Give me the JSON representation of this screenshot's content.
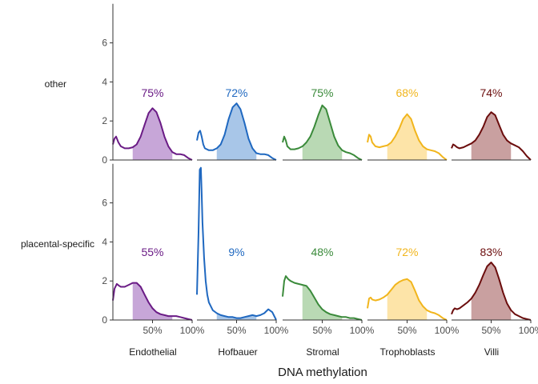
{
  "chart_data": {
    "type": "area",
    "xlabel": "DNA methylation",
    "ylabel": "",
    "ylim": [
      0,
      8
    ],
    "yticks": [
      0,
      2,
      4,
      6
    ],
    "xlim": [
      0,
      1
    ],
    "xticks": [
      0.5,
      1.0
    ],
    "xtick_labels": [
      "50%",
      "100%"
    ],
    "grid": false,
    "rows": [
      "other",
      "placental-specific"
    ],
    "columns": [
      "Endothelial",
      "Hofbauer",
      "Stromal",
      "Trophoblasts",
      "Villi"
    ],
    "colors": {
      "Endothelial": {
        "line": "#6a1b85",
        "fill": "#c7a6d8"
      },
      "Hofbauer": {
        "line": "#1f68c0",
        "fill": "#a8c6e8"
      },
      "Stromal": {
        "line": "#3a8a3a",
        "fill": "#b9d9b4"
      },
      "Trophoblasts": {
        "line": "#f1b51c",
        "fill": "#fde4a8"
      },
      "Villi": {
        "line": "#6b0d0d",
        "fill": "#c9a0a0"
      }
    },
    "panels": [
      {
        "row": "other",
        "column": "Endothelial",
        "percent_label": "75%",
        "shade": [
          0.25,
          0.75
        ],
        "x": [
          0,
          0.02,
          0.04,
          0.07,
          0.1,
          0.15,
          0.2,
          0.25,
          0.3,
          0.35,
          0.4,
          0.45,
          0.5,
          0.55,
          0.6,
          0.65,
          0.7,
          0.75,
          0.8,
          0.85,
          0.9,
          0.95,
          1.0
        ],
        "y": [
          0.8,
          1.1,
          1.2,
          0.9,
          0.7,
          0.6,
          0.6,
          0.65,
          0.8,
          1.2,
          1.8,
          2.4,
          2.65,
          2.45,
          1.9,
          1.2,
          0.7,
          0.4,
          0.3,
          0.3,
          0.25,
          0.1,
          0.0
        ]
      },
      {
        "row": "other",
        "column": "Hofbauer",
        "percent_label": "72%",
        "shade": [
          0.25,
          0.75
        ],
        "x": [
          0,
          0.02,
          0.04,
          0.06,
          0.08,
          0.1,
          0.15,
          0.2,
          0.25,
          0.3,
          0.35,
          0.4,
          0.45,
          0.5,
          0.55,
          0.6,
          0.65,
          0.7,
          0.75,
          0.8,
          0.85,
          0.9,
          0.95,
          1.0
        ],
        "y": [
          1.0,
          1.4,
          1.5,
          1.2,
          0.8,
          0.6,
          0.5,
          0.5,
          0.6,
          0.8,
          1.3,
          2.1,
          2.7,
          2.9,
          2.6,
          1.9,
          1.1,
          0.6,
          0.35,
          0.3,
          0.3,
          0.25,
          0.1,
          0.0
        ]
      },
      {
        "row": "other",
        "column": "Stromal",
        "percent_label": "75%",
        "shade": [
          0.25,
          0.75
        ],
        "x": [
          0,
          0.02,
          0.04,
          0.06,
          0.1,
          0.15,
          0.2,
          0.25,
          0.3,
          0.35,
          0.4,
          0.45,
          0.5,
          0.55,
          0.6,
          0.65,
          0.7,
          0.75,
          0.8,
          0.85,
          0.9,
          0.95,
          1.0
        ],
        "y": [
          0.9,
          1.2,
          1.0,
          0.7,
          0.55,
          0.55,
          0.6,
          0.7,
          0.9,
          1.2,
          1.7,
          2.3,
          2.8,
          2.6,
          1.9,
          1.2,
          0.75,
          0.5,
          0.4,
          0.35,
          0.25,
          0.1,
          0.0
        ]
      },
      {
        "row": "other",
        "column": "Trophoblasts",
        "percent_label": "68%",
        "shade": [
          0.25,
          0.75
        ],
        "x": [
          0,
          0.02,
          0.04,
          0.06,
          0.1,
          0.15,
          0.2,
          0.25,
          0.3,
          0.35,
          0.4,
          0.45,
          0.5,
          0.55,
          0.6,
          0.65,
          0.7,
          0.75,
          0.8,
          0.85,
          0.9,
          0.95,
          1.0
        ],
        "y": [
          0.9,
          1.3,
          1.2,
          0.9,
          0.7,
          0.65,
          0.7,
          0.75,
          0.9,
          1.2,
          1.6,
          2.1,
          2.35,
          2.1,
          1.5,
          1.0,
          0.7,
          0.55,
          0.5,
          0.45,
          0.35,
          0.15,
          0.0
        ]
      },
      {
        "row": "other",
        "column": "Villi",
        "percent_label": "74%",
        "shade": [
          0.25,
          0.75
        ],
        "x": [
          0,
          0.02,
          0.04,
          0.07,
          0.1,
          0.15,
          0.2,
          0.25,
          0.3,
          0.35,
          0.4,
          0.45,
          0.5,
          0.55,
          0.6,
          0.65,
          0.7,
          0.75,
          0.8,
          0.85,
          0.9,
          0.95,
          1.0
        ],
        "y": [
          0.6,
          0.8,
          0.75,
          0.65,
          0.6,
          0.65,
          0.75,
          0.85,
          1.0,
          1.3,
          1.7,
          2.2,
          2.45,
          2.3,
          1.8,
          1.3,
          1.0,
          0.85,
          0.75,
          0.65,
          0.45,
          0.2,
          0.0
        ]
      },
      {
        "row": "placental-specific",
        "column": "Endothelial",
        "percent_label": "55%",
        "shade": [
          0.25,
          0.75
        ],
        "x": [
          0,
          0.02,
          0.05,
          0.08,
          0.1,
          0.15,
          0.2,
          0.25,
          0.3,
          0.35,
          0.4,
          0.45,
          0.5,
          0.55,
          0.6,
          0.65,
          0.7,
          0.75,
          0.8,
          0.85,
          0.9,
          0.95,
          1.0
        ],
        "y": [
          1.0,
          1.6,
          1.85,
          1.75,
          1.7,
          1.7,
          1.8,
          1.9,
          1.9,
          1.7,
          1.3,
          0.9,
          0.6,
          0.4,
          0.3,
          0.25,
          0.2,
          0.2,
          0.2,
          0.15,
          0.1,
          0.05,
          0.0
        ]
      },
      {
        "row": "placental-specific",
        "column": "Hofbauer",
        "percent_label": "9%",
        "shade": [
          0.25,
          0.75
        ],
        "x": [
          0,
          0.02,
          0.035,
          0.05,
          0.06,
          0.07,
          0.09,
          0.11,
          0.13,
          0.15,
          0.2,
          0.25,
          0.3,
          0.35,
          0.4,
          0.45,
          0.5,
          0.55,
          0.6,
          0.65,
          0.7,
          0.75,
          0.8,
          0.85,
          0.9,
          0.95,
          1.0
        ],
        "y": [
          1.3,
          4.5,
          7.7,
          7.8,
          6.5,
          5.0,
          3.2,
          2.0,
          1.3,
          0.9,
          0.5,
          0.35,
          0.25,
          0.2,
          0.15,
          0.15,
          0.1,
          0.1,
          0.15,
          0.2,
          0.25,
          0.2,
          0.25,
          0.35,
          0.55,
          0.4,
          0.0
        ]
      },
      {
        "row": "placental-specific",
        "column": "Stromal",
        "percent_label": "48%",
        "shade": [
          0.25,
          0.75
        ],
        "x": [
          0,
          0.02,
          0.04,
          0.07,
          0.1,
          0.15,
          0.2,
          0.25,
          0.3,
          0.35,
          0.4,
          0.45,
          0.5,
          0.55,
          0.6,
          0.65,
          0.7,
          0.75,
          0.8,
          0.85,
          0.9,
          0.95,
          1.0
        ],
        "y": [
          1.2,
          2.0,
          2.25,
          2.1,
          2.0,
          1.9,
          1.85,
          1.8,
          1.75,
          1.5,
          1.15,
          0.8,
          0.55,
          0.4,
          0.3,
          0.25,
          0.2,
          0.15,
          0.15,
          0.1,
          0.1,
          0.05,
          0.0
        ]
      },
      {
        "row": "placental-specific",
        "column": "Trophoblasts",
        "percent_label": "72%",
        "shade": [
          0.25,
          0.75
        ],
        "x": [
          0,
          0.02,
          0.04,
          0.06,
          0.1,
          0.15,
          0.2,
          0.25,
          0.3,
          0.35,
          0.4,
          0.45,
          0.5,
          0.55,
          0.6,
          0.65,
          0.7,
          0.75,
          0.8,
          0.85,
          0.9,
          0.95,
          1.0
        ],
        "y": [
          0.6,
          1.1,
          1.15,
          1.05,
          1.0,
          1.05,
          1.15,
          1.3,
          1.55,
          1.8,
          1.95,
          2.05,
          2.1,
          1.95,
          1.5,
          1.0,
          0.7,
          0.5,
          0.4,
          0.35,
          0.25,
          0.1,
          0.0
        ]
      },
      {
        "row": "placental-specific",
        "column": "Villi",
        "percent_label": "83%",
        "shade": [
          0.25,
          0.75
        ],
        "x": [
          0,
          0.02,
          0.04,
          0.07,
          0.1,
          0.15,
          0.2,
          0.25,
          0.3,
          0.35,
          0.4,
          0.45,
          0.5,
          0.55,
          0.6,
          0.65,
          0.7,
          0.75,
          0.8,
          0.85,
          0.9,
          0.95,
          1.0
        ],
        "y": [
          0.3,
          0.5,
          0.6,
          0.55,
          0.6,
          0.75,
          0.9,
          1.1,
          1.4,
          1.8,
          2.3,
          2.75,
          2.95,
          2.7,
          2.1,
          1.4,
          0.85,
          0.5,
          0.3,
          0.2,
          0.1,
          0.05,
          0.0
        ]
      }
    ]
  }
}
